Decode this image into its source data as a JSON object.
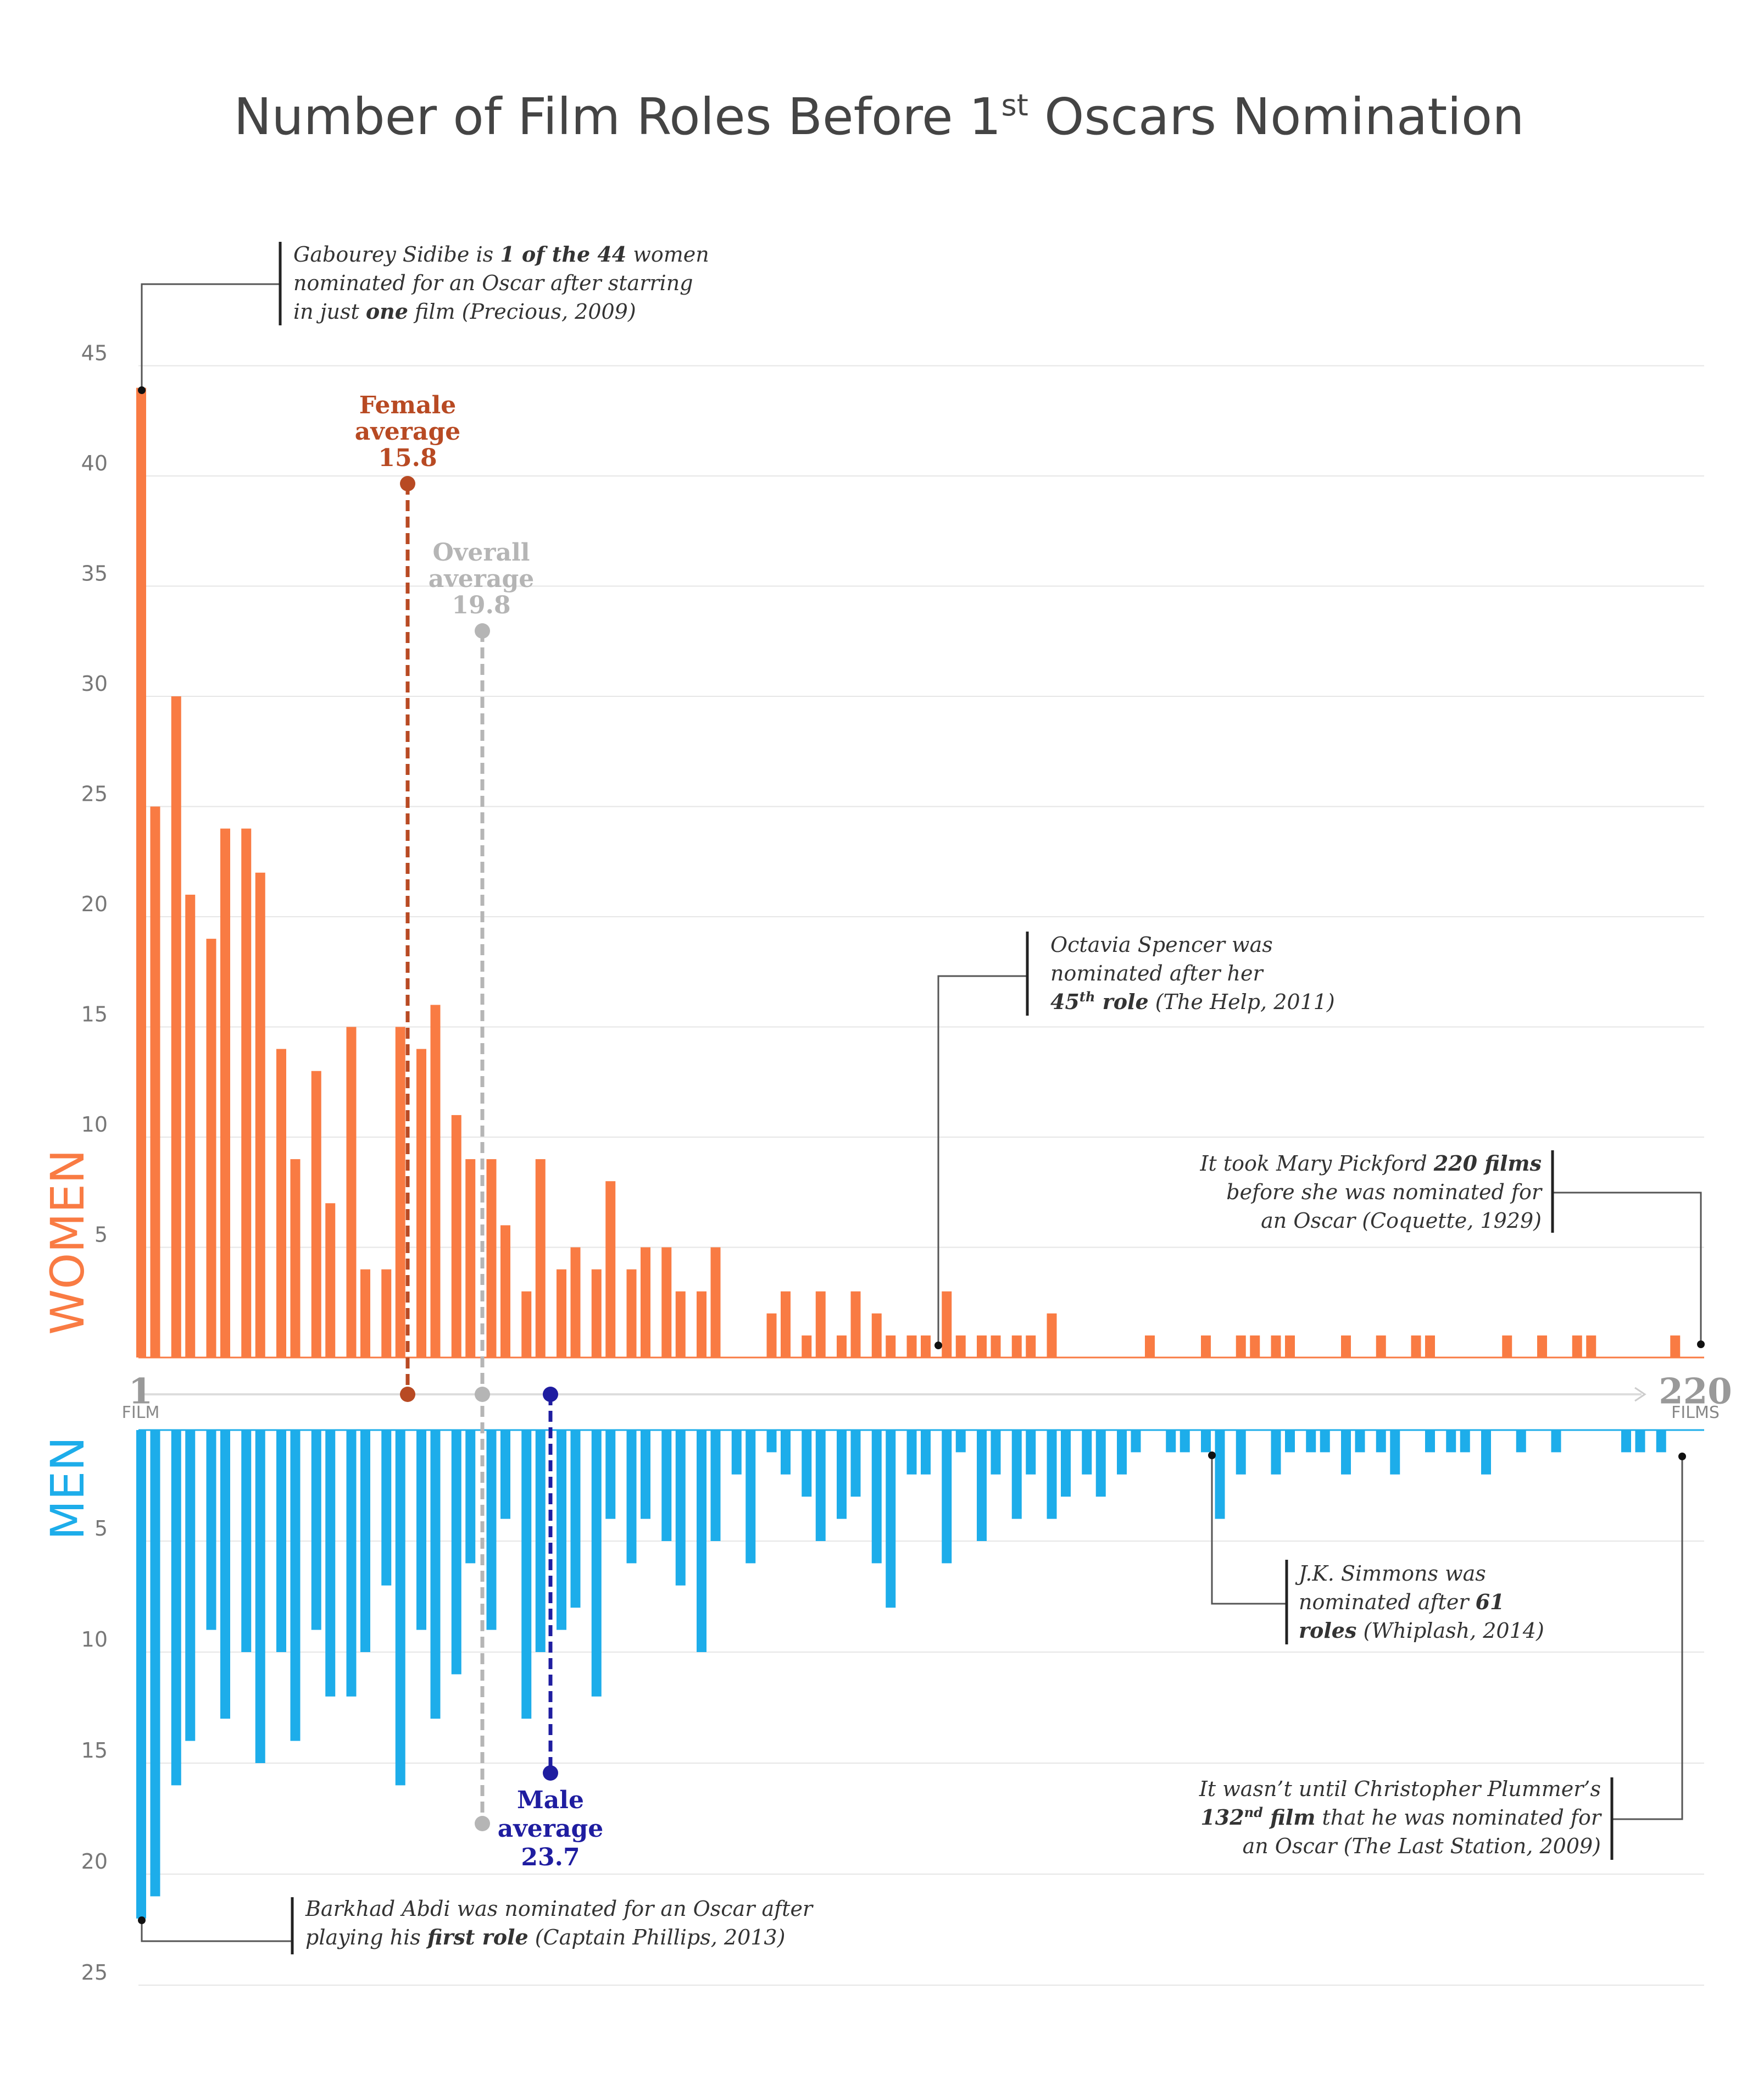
{
  "title": {
    "main": "Number of Film Roles Before 1",
    "sup": "st",
    "tail": " Oscars Nomination"
  },
  "colors": {
    "women": "#F97B43",
    "men": "#1DADEA",
    "female_avg": "#B84A23",
    "male_avg": "#1F1DA0",
    "overall_avg": "#B5B5B5",
    "grid": "#E6E6E6"
  },
  "labels": {
    "women": "WOMEN",
    "men": "MEN",
    "start_number": "1",
    "start_unit": "FILM",
    "end_number": "220",
    "end_unit": "FILMS"
  },
  "averages": {
    "female": {
      "line1": "Female",
      "line2": "average",
      "value": "15.8"
    },
    "overall": {
      "line1": "Overall",
      "line2": "average",
      "value": "19.8"
    },
    "male": {
      "line1": "Male",
      "line2": "average",
      "value": "23.7"
    }
  },
  "annotations": {
    "sidibe": [
      [
        {
          "t": "Gabourey Sidibe is "
        },
        {
          "t": "1 of the 44",
          "b": true
        },
        {
          "t": " women"
        }
      ],
      [
        {
          "t": "nominated for an Oscar after starring"
        }
      ],
      [
        {
          "t": "in just "
        },
        {
          "t": "one",
          "b": true
        },
        {
          "t": " film (Precious, 2009)"
        }
      ]
    ],
    "spencer": [
      [
        {
          "t": "Octavia Spencer  was"
        }
      ],
      [
        {
          "t": "nominated after her"
        }
      ],
      [
        {
          "t": "45",
          "b": true
        },
        {
          "t": "th",
          "b": true,
          "sup": true
        },
        {
          "t": " role",
          "b": true
        },
        {
          "t": " (The Help, 2011)"
        }
      ]
    ],
    "pickford": [
      [
        {
          "t": "It took Mary Pickford "
        },
        {
          "t": "220 films",
          "b": true
        }
      ],
      [
        {
          "t": "before she was nominated for"
        }
      ],
      [
        {
          "t": "an Oscar (Coquette, 1929)"
        }
      ]
    ],
    "simmons": [
      [
        {
          "t": "J.K. Simmons was"
        }
      ],
      [
        {
          "t": "nominated after "
        },
        {
          "t": "61",
          "b": true
        }
      ],
      [
        {
          "t": "roles",
          "b": true
        },
        {
          "t": " (Whiplash, 2014)"
        }
      ]
    ],
    "plummer": [
      [
        {
          "t": "It wasn’t until Christopher Plummer’s"
        }
      ],
      [
        {
          "t": "132",
          "b": true
        },
        {
          "t": "nd",
          "b": true,
          "sup": true
        },
        {
          "t": " film",
          "b": true
        },
        {
          "t": " that he was nominated for"
        }
      ],
      [
        {
          "t": "an Oscar (The Last Station, 2009)"
        }
      ]
    ],
    "abdi": [
      [
        {
          "t": "Barkhad Abdi was nominated for an Oscar after"
        }
      ],
      [
        {
          "t": "playing his "
        },
        {
          "t": "first role",
          "b": true
        },
        {
          "t": " (Captain Phillips, 2013)"
        }
      ]
    ]
  },
  "chart_data": {
    "type": "bar",
    "x_label": "Number of film roles before first Oscar nomination",
    "x_range": [
      1,
      220
    ],
    "women_axis": {
      "ticks": [
        5,
        10,
        15,
        20,
        25,
        30,
        35,
        40,
        45
      ],
      "range": [
        0,
        45
      ]
    },
    "men_axis": {
      "ticks": [
        5,
        10,
        15,
        20,
        25
      ],
      "range": [
        0,
        25
      ]
    },
    "averages": {
      "female": 15.8,
      "overall": 19.8,
      "male": 23.7
    },
    "series": [
      {
        "name": "WOMEN",
        "direction": "up",
        "bars": [
          {
            "x": 1,
            "v": 44
          },
          {
            "x": 3,
            "v": 25
          },
          {
            "x": 6,
            "v": 30
          },
          {
            "x": 8,
            "v": 21
          },
          {
            "x": 11,
            "v": 19
          },
          {
            "x": 13,
            "v": 24
          },
          {
            "x": 16,
            "v": 24
          },
          {
            "x": 18,
            "v": 22
          },
          {
            "x": 21,
            "v": 14
          },
          {
            "x": 23,
            "v": 9
          },
          {
            "x": 26,
            "v": 13
          },
          {
            "x": 28,
            "v": 7
          },
          {
            "x": 31,
            "v": 15
          },
          {
            "x": 33,
            "v": 4
          },
          {
            "x": 36,
            "v": 4
          },
          {
            "x": 38,
            "v": 15
          },
          {
            "x": 41,
            "v": 14
          },
          {
            "x": 43,
            "v": 16
          },
          {
            "x": 46,
            "v": 11
          },
          {
            "x": 48,
            "v": 9
          },
          {
            "x": 51,
            "v": 9
          },
          {
            "x": 53,
            "v": 6
          },
          {
            "x": 56,
            "v": 3
          },
          {
            "x": 58,
            "v": 9
          },
          {
            "x": 61,
            "v": 4
          },
          {
            "x": 63,
            "v": 5
          },
          {
            "x": 66,
            "v": 4
          },
          {
            "x": 68,
            "v": 8
          },
          {
            "x": 71,
            "v": 4
          },
          {
            "x": 73,
            "v": 5
          },
          {
            "x": 76,
            "v": 5
          },
          {
            "x": 78,
            "v": 3
          },
          {
            "x": 81,
            "v": 3
          },
          {
            "x": 83,
            "v": 5
          },
          {
            "x": 91,
            "v": 2
          },
          {
            "x": 93,
            "v": 3
          },
          {
            "x": 96,
            "v": 1
          },
          {
            "x": 98,
            "v": 3
          },
          {
            "x": 101,
            "v": 1
          },
          {
            "x": 103,
            "v": 3
          },
          {
            "x": 106,
            "v": 2
          },
          {
            "x": 108,
            "v": 1
          },
          {
            "x": 111,
            "v": 1
          },
          {
            "x": 113,
            "v": 1
          },
          {
            "x": 116,
            "v": 3
          },
          {
            "x": 118,
            "v": 1
          },
          {
            "x": 121,
            "v": 1
          },
          {
            "x": 123,
            "v": 1
          },
          {
            "x": 126,
            "v": 1
          },
          {
            "x": 128,
            "v": 1
          },
          {
            "x": 131,
            "v": 2
          },
          {
            "x": 145,
            "v": 1
          },
          {
            "x": 153,
            "v": 1
          },
          {
            "x": 158,
            "v": 1
          },
          {
            "x": 160,
            "v": 1
          },
          {
            "x": 163,
            "v": 1
          },
          {
            "x": 165,
            "v": 1
          },
          {
            "x": 173,
            "v": 1
          },
          {
            "x": 178,
            "v": 1
          },
          {
            "x": 183,
            "v": 1
          },
          {
            "x": 185,
            "v": 1
          },
          {
            "x": 196,
            "v": 1
          },
          {
            "x": 201,
            "v": 1
          },
          {
            "x": 206,
            "v": 1
          },
          {
            "x": 208,
            "v": 1
          },
          {
            "x": 220,
            "v": 1
          }
        ]
      },
      {
        "name": "MEN",
        "direction": "down",
        "bars": [
          {
            "x": 1,
            "v": 22
          },
          {
            "x": 3,
            "v": 21
          },
          {
            "x": 6,
            "v": 16
          },
          {
            "x": 8,
            "v": 14
          },
          {
            "x": 11,
            "v": 9
          },
          {
            "x": 13,
            "v": 13
          },
          {
            "x": 16,
            "v": 10
          },
          {
            "x": 18,
            "v": 15
          },
          {
            "x": 21,
            "v": 10
          },
          {
            "x": 23,
            "v": 14
          },
          {
            "x": 26,
            "v": 9
          },
          {
            "x": 28,
            "v": 12
          },
          {
            "x": 31,
            "v": 12
          },
          {
            "x": 33,
            "v": 10
          },
          {
            "x": 36,
            "v": 7
          },
          {
            "x": 38,
            "v": 16
          },
          {
            "x": 41,
            "v": 9
          },
          {
            "x": 43,
            "v": 13
          },
          {
            "x": 46,
            "v": 11
          },
          {
            "x": 48,
            "v": 6
          },
          {
            "x": 51,
            "v": 9
          },
          {
            "x": 53,
            "v": 4
          },
          {
            "x": 56,
            "v": 13
          },
          {
            "x": 58,
            "v": 10
          },
          {
            "x": 61,
            "v": 9
          },
          {
            "x": 63,
            "v": 8
          },
          {
            "x": 66,
            "v": 12
          },
          {
            "x": 68,
            "v": 4
          },
          {
            "x": 71,
            "v": 6
          },
          {
            "x": 73,
            "v": 4
          },
          {
            "x": 76,
            "v": 5
          },
          {
            "x": 78,
            "v": 7
          },
          {
            "x": 81,
            "v": 10
          },
          {
            "x": 83,
            "v": 5
          },
          {
            "x": 86,
            "v": 2
          },
          {
            "x": 88,
            "v": 6
          },
          {
            "x": 91,
            "v": 1
          },
          {
            "x": 93,
            "v": 2
          },
          {
            "x": 96,
            "v": 3
          },
          {
            "x": 98,
            "v": 5
          },
          {
            "x": 101,
            "v": 4
          },
          {
            "x": 103,
            "v": 3
          },
          {
            "x": 106,
            "v": 6
          },
          {
            "x": 108,
            "v": 8
          },
          {
            "x": 111,
            "v": 2
          },
          {
            "x": 113,
            "v": 2
          },
          {
            "x": 116,
            "v": 6
          },
          {
            "x": 118,
            "v": 1
          },
          {
            "x": 121,
            "v": 5
          },
          {
            "x": 123,
            "v": 2
          },
          {
            "x": 126,
            "v": 4
          },
          {
            "x": 128,
            "v": 2
          },
          {
            "x": 131,
            "v": 4
          },
          {
            "x": 133,
            "v": 3
          },
          {
            "x": 136,
            "v": 2
          },
          {
            "x": 138,
            "v": 3
          },
          {
            "x": 141,
            "v": 2
          },
          {
            "x": 143,
            "v": 1
          },
          {
            "x": 148,
            "v": 1
          },
          {
            "x": 150,
            "v": 1
          },
          {
            "x": 153,
            "v": 1
          },
          {
            "x": 155,
            "v": 4
          },
          {
            "x": 158,
            "v": 2
          },
          {
            "x": 163,
            "v": 2
          },
          {
            "x": 165,
            "v": 1
          },
          {
            "x": 168,
            "v": 1
          },
          {
            "x": 170,
            "v": 1
          },
          {
            "x": 173,
            "v": 2
          },
          {
            "x": 175,
            "v": 1
          },
          {
            "x": 178,
            "v": 1
          },
          {
            "x": 180,
            "v": 2
          },
          {
            "x": 185,
            "v": 1
          },
          {
            "x": 188,
            "v": 1
          },
          {
            "x": 190,
            "v": 1
          },
          {
            "x": 193,
            "v": 2
          },
          {
            "x": 198,
            "v": 1
          },
          {
            "x": 203,
            "v": 1
          },
          {
            "x": 213,
            "v": 1
          },
          {
            "x": 215,
            "v": 1
          },
          {
            "x": 218,
            "v": 1
          }
        ]
      }
    ]
  }
}
